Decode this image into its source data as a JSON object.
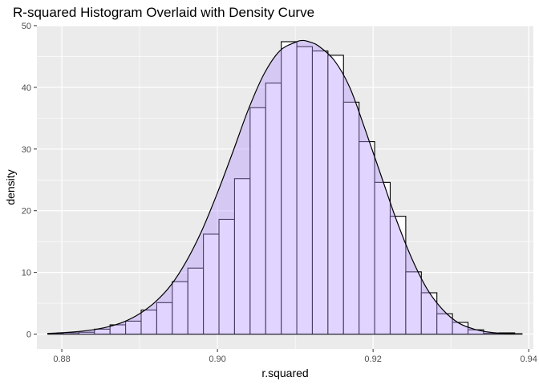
{
  "chart_data": {
    "type": "histogram",
    "title": "R-squared Histogram Overlaid with Density Curve",
    "xlabel": "r.squared",
    "ylabel": "density",
    "xlim": [
      0.8768,
      0.9406
    ],
    "ylim": [
      -2.4,
      50
    ],
    "x_ticks": [
      {
        "value": 0.88,
        "label": "0.88"
      },
      {
        "value": 0.9,
        "label": "0.90"
      },
      {
        "value": 0.92,
        "label": "0.92"
      },
      {
        "value": 0.94,
        "label": "0.94"
      }
    ],
    "y_ticks": [
      {
        "value": 0,
        "label": "0"
      },
      {
        "value": 10,
        "label": "10"
      },
      {
        "value": 20,
        "label": "20"
      },
      {
        "value": 30,
        "label": "30"
      },
      {
        "value": 40,
        "label": "40"
      },
      {
        "value": 50,
        "label": "50"
      }
    ],
    "grid": true,
    "bin_width": 0.002,
    "bins": [
      {
        "x0": 0.8782,
        "density": 0.1
      },
      {
        "x0": 0.8802,
        "density": 0.2
      },
      {
        "x0": 0.8822,
        "density": 0.3
      },
      {
        "x0": 0.8842,
        "density": 0.8
      },
      {
        "x0": 0.8862,
        "density": 1.5
      },
      {
        "x0": 0.8882,
        "density": 2.1
      },
      {
        "x0": 0.8902,
        "density": 3.9
      },
      {
        "x0": 0.8922,
        "density": 5.1
      },
      {
        "x0": 0.8942,
        "density": 8.5
      },
      {
        "x0": 0.8962,
        "density": 10.7
      },
      {
        "x0": 0.8982,
        "density": 16.2
      },
      {
        "x0": 0.9002,
        "density": 18.6
      },
      {
        "x0": 0.9022,
        "density": 25.2
      },
      {
        "x0": 0.9042,
        "density": 36.7
      },
      {
        "x0": 0.9062,
        "density": 40.7
      },
      {
        "x0": 0.9082,
        "density": 47.4
      },
      {
        "x0": 0.9102,
        "density": 46.6
      },
      {
        "x0": 0.9122,
        "density": 45.9
      },
      {
        "x0": 0.9142,
        "density": 45.2
      },
      {
        "x0": 0.9162,
        "density": 37.6
      },
      {
        "x0": 0.9182,
        "density": 31.2
      },
      {
        "x0": 0.9202,
        "density": 24.6
      },
      {
        "x0": 0.9222,
        "density": 19.1
      },
      {
        "x0": 0.9242,
        "density": 10.1
      },
      {
        "x0": 0.9262,
        "density": 6.7
      },
      {
        "x0": 0.9282,
        "density": 3.3
      },
      {
        "x0": 0.9302,
        "density": 1.9
      },
      {
        "x0": 0.9322,
        "density": 0.7
      },
      {
        "x0": 0.9342,
        "density": 0.1
      },
      {
        "x0": 0.9362,
        "density": 0.2
      }
    ],
    "density_curve": {
      "x": [
        0.8782,
        0.881,
        0.884,
        0.886,
        0.888,
        0.89,
        0.892,
        0.894,
        0.896,
        0.898,
        0.9,
        0.902,
        0.904,
        0.906,
        0.908,
        0.91,
        0.911,
        0.912,
        0.913,
        0.915,
        0.917,
        0.919,
        0.921,
        0.923,
        0.925,
        0.927,
        0.929,
        0.931,
        0.933,
        0.935,
        0.937,
        0.9392
      ],
      "y": [
        0.1,
        0.3,
        0.7,
        1.2,
        2.0,
        3.3,
        5.2,
        7.9,
        11.8,
        16.8,
        22.9,
        29.6,
        36.5,
        42.2,
        45.9,
        47.3,
        47.6,
        47.3,
        46.7,
        44.4,
        40.0,
        33.1,
        25.8,
        18.5,
        12.2,
        7.2,
        3.9,
        1.8,
        0.8,
        0.3,
        0.1,
        0.05
      ]
    },
    "colors": {
      "panel_background": "#ebebeb",
      "gridline": "#ffffff",
      "bar_outline": "#000000",
      "bar_fill": "#ffffff",
      "density_fill": "#b497ff",
      "density_fill_opacity": 0.4,
      "density_line": "#000000"
    }
  }
}
